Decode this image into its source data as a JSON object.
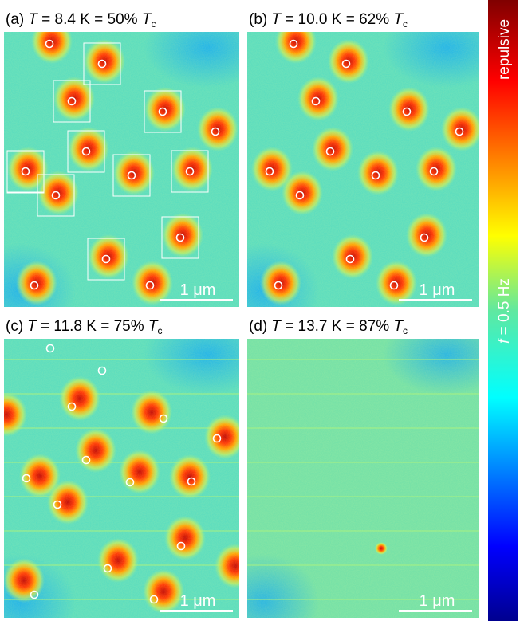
{
  "panels": [
    {
      "label": "(a)",
      "var": "T",
      "text": " = 8.4 K = 50% ",
      "var2": "T",
      "sub": "c",
      "scale_bar": "1 μm"
    },
    {
      "label": "(b)",
      "var": "T",
      "text": " = 10.0 K = 62% ",
      "var2": "T",
      "sub": "c",
      "scale_bar": "1 μm"
    },
    {
      "label": "(c)",
      "var": "T",
      "text": " = 11.8 K = 75% ",
      "var2": "T",
      "sub": "c",
      "scale_bar": "1 μm"
    },
    {
      "label": "(d)",
      "var": "T",
      "text": " = 13.7 K = 87% ",
      "var2": "T",
      "sub": "c",
      "scale_bar": "1 μm"
    }
  ],
  "colorbar": {
    "top_label": "repulsive",
    "var": "f",
    "text": " = 0.5 Hz"
  }
}
